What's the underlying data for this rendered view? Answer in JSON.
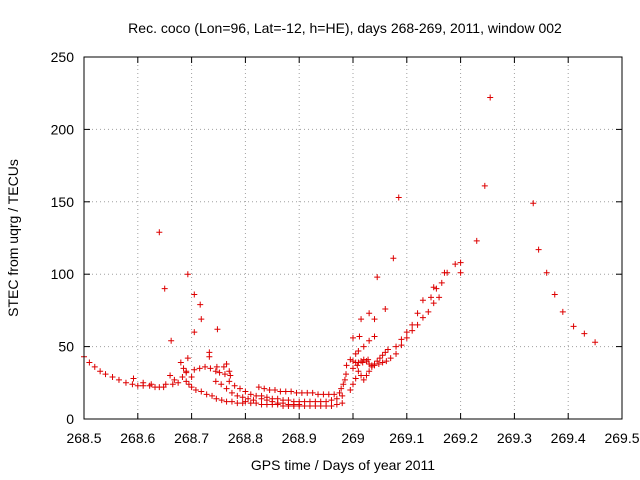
{
  "chart_data": {
    "type": "scatter",
    "title": "Rec. coco (Lon=96, Lat=-12, h=HE), days 268-269, 2011, window 002",
    "xlabel": "GPS time / Days of year 2011",
    "ylabel": "STEC from uqrg / TECUs",
    "xlim": [
      268.5,
      269.5
    ],
    "ylim": [
      0,
      250
    ],
    "x_ticks": [
      268.5,
      268.6,
      268.7,
      268.8,
      268.9,
      269.0,
      269.1,
      269.2,
      269.3,
      269.4,
      269.5
    ],
    "x_tick_labels": [
      "268.5",
      "268.6",
      "268.7",
      "268.8",
      "268.9",
      "269",
      "269.1",
      "269.2",
      "269.3",
      "269.4",
      "269.5"
    ],
    "y_ticks": [
      0,
      50,
      100,
      150,
      200,
      250
    ],
    "y_tick_labels": [
      "0",
      "50",
      "100",
      "150",
      "200",
      "250"
    ],
    "grid": true,
    "marker": "+",
    "color": "#dd0000",
    "points": [
      [
        268.5,
        43
      ],
      [
        268.51,
        39
      ],
      [
        268.52,
        36
      ],
      [
        268.53,
        33
      ],
      [
        268.54,
        31
      ],
      [
        268.553,
        29
      ],
      [
        268.565,
        27
      ],
      [
        268.578,
        25
      ],
      [
        268.59,
        24
      ],
      [
        268.6,
        23
      ],
      [
        268.61,
        23
      ],
      [
        268.622,
        23
      ],
      [
        268.632,
        22
      ],
      [
        268.64,
        22
      ],
      [
        268.648,
        22
      ],
      [
        268.592,
        28
      ],
      [
        268.61,
        25
      ],
      [
        268.625,
        24
      ],
      [
        268.652,
        24
      ],
      [
        268.665,
        24
      ],
      [
        268.64,
        129
      ],
      [
        268.65,
        90
      ],
      [
        268.662,
        54
      ],
      [
        268.693,
        100
      ],
      [
        268.705,
        86
      ],
      [
        268.716,
        79
      ],
      [
        268.718,
        69
      ],
      [
        268.748,
        62
      ],
      [
        268.705,
        60
      ],
      [
        268.693,
        42
      ],
      [
        268.68,
        39
      ],
      [
        268.733,
        46
      ],
      [
        268.733,
        43
      ],
      [
        268.66,
        30
      ],
      [
        268.668,
        27
      ],
      [
        268.675,
        25
      ],
      [
        268.683,
        29
      ],
      [
        268.69,
        32
      ],
      [
        268.695,
        24
      ],
      [
        268.7,
        22
      ],
      [
        268.708,
        20
      ],
      [
        268.718,
        19
      ],
      [
        268.728,
        17
      ],
      [
        268.738,
        16
      ],
      [
        268.746,
        14
      ],
      [
        268.756,
        13
      ],
      [
        268.765,
        12
      ],
      [
        268.775,
        12
      ],
      [
        268.785,
        11
      ],
      [
        268.795,
        11
      ],
      [
        268.685,
        35
      ],
      [
        268.69,
        33
      ],
      [
        268.705,
        34
      ],
      [
        268.715,
        35
      ],
      [
        268.725,
        36
      ],
      [
        268.735,
        35
      ],
      [
        268.745,
        33
      ],
      [
        268.752,
        32
      ],
      [
        268.762,
        31
      ],
      [
        268.772,
        30
      ],
      [
        268.77,
        33
      ],
      [
        268.76,
        36
      ],
      [
        268.747,
        36
      ],
      [
        268.765,
        38
      ],
      [
        268.69,
        26
      ],
      [
        268.7,
        29
      ],
      [
        268.745,
        26
      ],
      [
        268.755,
        24
      ],
      [
        268.765,
        21
      ],
      [
        268.775,
        18
      ],
      [
        268.785,
        16
      ],
      [
        268.795,
        15
      ],
      [
        268.805,
        14
      ],
      [
        268.815,
        13
      ],
      [
        268.77,
        26
      ],
      [
        268.78,
        23
      ],
      [
        268.79,
        21
      ],
      [
        268.8,
        19
      ],
      [
        268.81,
        17
      ],
      [
        268.82,
        16
      ],
      [
        268.83,
        14
      ],
      [
        268.84,
        13
      ],
      [
        268.85,
        12
      ],
      [
        268.8,
        12
      ],
      [
        268.81,
        11
      ],
      [
        268.82,
        11
      ],
      [
        268.83,
        10
      ],
      [
        268.84,
        10
      ],
      [
        268.85,
        10
      ],
      [
        268.86,
        10
      ],
      [
        268.87,
        9
      ],
      [
        268.88,
        9
      ],
      [
        268.89,
        9
      ],
      [
        268.9,
        9
      ],
      [
        268.91,
        9
      ],
      [
        268.92,
        9
      ],
      [
        268.93,
        9
      ],
      [
        268.94,
        9
      ],
      [
        268.95,
        9
      ],
      [
        268.96,
        9
      ],
      [
        268.97,
        10
      ],
      [
        268.98,
        11
      ],
      [
        268.825,
        22
      ],
      [
        268.835,
        21
      ],
      [
        268.845,
        20
      ],
      [
        268.855,
        20
      ],
      [
        268.865,
        19
      ],
      [
        268.875,
        19
      ],
      [
        268.885,
        19
      ],
      [
        268.895,
        18
      ],
      [
        268.905,
        18
      ],
      [
        268.915,
        18
      ],
      [
        268.925,
        18
      ],
      [
        268.935,
        17
      ],
      [
        268.945,
        17
      ],
      [
        268.955,
        17
      ],
      [
        268.965,
        17
      ],
      [
        268.83,
        16
      ],
      [
        268.84,
        15
      ],
      [
        268.85,
        14
      ],
      [
        268.86,
        14
      ],
      [
        268.87,
        13
      ],
      [
        268.88,
        13
      ],
      [
        268.89,
        12
      ],
      [
        268.9,
        12
      ],
      [
        268.91,
        12
      ],
      [
        268.92,
        12
      ],
      [
        268.93,
        12
      ],
      [
        268.94,
        12
      ],
      [
        268.95,
        12
      ],
      [
        268.96,
        13
      ],
      [
        268.97,
        14
      ],
      [
        268.86,
        11
      ],
      [
        268.87,
        11
      ],
      [
        268.88,
        10
      ],
      [
        268.89,
        10
      ],
      [
        268.9,
        10
      ],
      [
        268.975,
        18
      ],
      [
        268.978,
        21
      ],
      [
        268.982,
        24
      ],
      [
        268.985,
        27
      ],
      [
        268.987,
        31
      ],
      [
        268.988,
        37
      ],
      [
        268.98,
        16
      ],
      [
        268.995,
        20
      ],
      [
        269.0,
        24
      ],
      [
        269.005,
        28
      ],
      [
        269.01,
        33
      ],
      [
        269.015,
        30
      ],
      [
        269.02,
        27
      ],
      [
        269.025,
        30
      ],
      [
        269.03,
        33
      ],
      [
        269.035,
        36
      ],
      [
        269.04,
        38
      ],
      [
        269.045,
        40
      ],
      [
        269.05,
        42
      ],
      [
        269.055,
        44
      ],
      [
        269.06,
        46
      ],
      [
        269.065,
        48
      ],
      [
        268.995,
        41
      ],
      [
        269.0,
        40
      ],
      [
        269.005,
        39
      ],
      [
        269.01,
        39
      ],
      [
        269.015,
        40
      ],
      [
        269.02,
        41
      ],
      [
        269.025,
        40
      ],
      [
        269.03,
        38
      ],
      [
        269.035,
        37
      ],
      [
        269.04,
        37
      ],
      [
        269.048,
        38
      ],
      [
        269.055,
        39
      ],
      [
        269.062,
        40
      ],
      [
        269.005,
        45
      ],
      [
        269.01,
        47
      ],
      [
        269.02,
        50
      ],
      [
        269.03,
        54
      ],
      [
        269.04,
        57
      ],
      [
        269.0,
        56
      ],
      [
        269.012,
        57
      ],
      [
        269.015,
        69
      ],
      [
        269.03,
        73
      ],
      [
        269.04,
        69
      ],
      [
        269.045,
        98
      ],
      [
        269.06,
        76
      ],
      [
        269.075,
        111
      ],
      [
        269.085,
        153
      ],
      [
        269.0,
        35
      ],
      [
        269.008,
        37
      ],
      [
        269.018,
        39
      ],
      [
        269.028,
        41
      ],
      [
        269.07,
        42
      ],
      [
        269.08,
        45
      ],
      [
        269.09,
        51
      ],
      [
        269.1,
        56
      ],
      [
        269.11,
        61
      ],
      [
        269.12,
        65
      ],
      [
        269.13,
        70
      ],
      [
        269.14,
        74
      ],
      [
        269.15,
        80
      ],
      [
        269.16,
        84
      ],
      [
        269.08,
        50
      ],
      [
        269.09,
        55
      ],
      [
        269.1,
        60
      ],
      [
        269.11,
        65
      ],
      [
        269.12,
        73
      ],
      [
        269.13,
        82
      ],
      [
        269.145,
        84
      ],
      [
        269.155,
        90
      ],
      [
        269.165,
        94
      ],
      [
        269.175,
        101
      ],
      [
        269.19,
        107
      ],
      [
        269.2,
        101
      ],
      [
        269.15,
        91
      ],
      [
        269.17,
        101
      ],
      [
        269.2,
        108
      ],
      [
        269.23,
        123
      ],
      [
        269.245,
        161
      ],
      [
        269.255,
        222
      ],
      [
        269.335,
        149
      ],
      [
        269.345,
        117
      ],
      [
        269.36,
        101
      ],
      [
        269.375,
        86
      ],
      [
        269.39,
        74
      ],
      [
        269.41,
        64
      ],
      [
        269.43,
        59
      ],
      [
        269.45,
        53
      ]
    ]
  }
}
